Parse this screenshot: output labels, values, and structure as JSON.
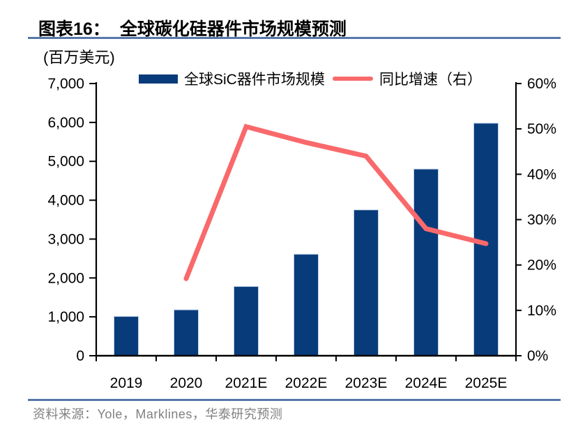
{
  "header": {
    "figure_label": "图表16：",
    "title": "全球碳化硅器件市场规模预测"
  },
  "footer": {
    "source": "资料来源：Yole，Marklines，华泰研究预测"
  },
  "colors": {
    "bar": "#083B7A",
    "bar_border": "#B9CDE5",
    "line": "#F9696B",
    "axis": "#000000",
    "rule": "#5578A8",
    "text": "#000000",
    "source_text": "#808080"
  },
  "chart_data": {
    "type": "bar+line combo",
    "title": "全球碳化硅器件市场规模预测",
    "ylabel": "(百万美元)",
    "xlabel": "",
    "grid": false,
    "legend_position": "top",
    "categories": [
      "2019",
      "2020",
      "2021E",
      "2022E",
      "2023E",
      "2024E",
      "2025E"
    ],
    "series": [
      {
        "name": "全球SiC器件市场规模",
        "type": "bar",
        "axis": "left",
        "unit": "百万美元",
        "values": [
          1010,
          1180,
          1780,
          2610,
          3750,
          4800,
          5980
        ]
      },
      {
        "name": "同比增速（右）",
        "type": "line",
        "axis": "right",
        "unit": "%",
        "values": [
          null,
          17,
          50.5,
          47,
          44,
          28,
          24.7
        ]
      }
    ],
    "left_axis": {
      "min": 0,
      "max": 7000,
      "step": 1000,
      "tick_labels": [
        "0",
        "1,000",
        "2,000",
        "3,000",
        "4,000",
        "5,000",
        "6,000",
        "7,000"
      ]
    },
    "right_axis": {
      "min": 0,
      "max": 60,
      "step": 10,
      "tick_labels": [
        "0%",
        "10%",
        "20%",
        "30%",
        "40%",
        "50%",
        "60%"
      ]
    }
  }
}
